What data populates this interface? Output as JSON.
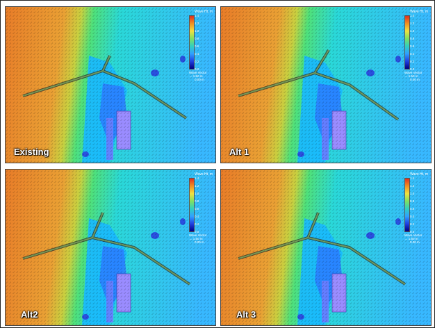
{
  "legend": {
    "title": "Wave Ht, m",
    "ticks": [
      "1.4",
      "1.2",
      "1.0",
      "0.8",
      "0.6",
      "0.4",
      "0.2",
      "0.0"
    ],
    "vector_title": "Wave Vector",
    "vector_arrow_label": "1.50 m",
    "vector_min_label": "0.00 m"
  },
  "colors": {
    "high": "#e8822a",
    "mid_high": "#e0c040",
    "mid": "#5ee07a",
    "mid_low": "#30d0ff",
    "low": "#0030c0",
    "structure": "#9a8cff"
  },
  "panels": [
    {
      "label": "Existing"
    },
    {
      "label": "Alt 1"
    },
    {
      "label": "Alt2"
    },
    {
      "label": "Alt 3"
    }
  ]
}
